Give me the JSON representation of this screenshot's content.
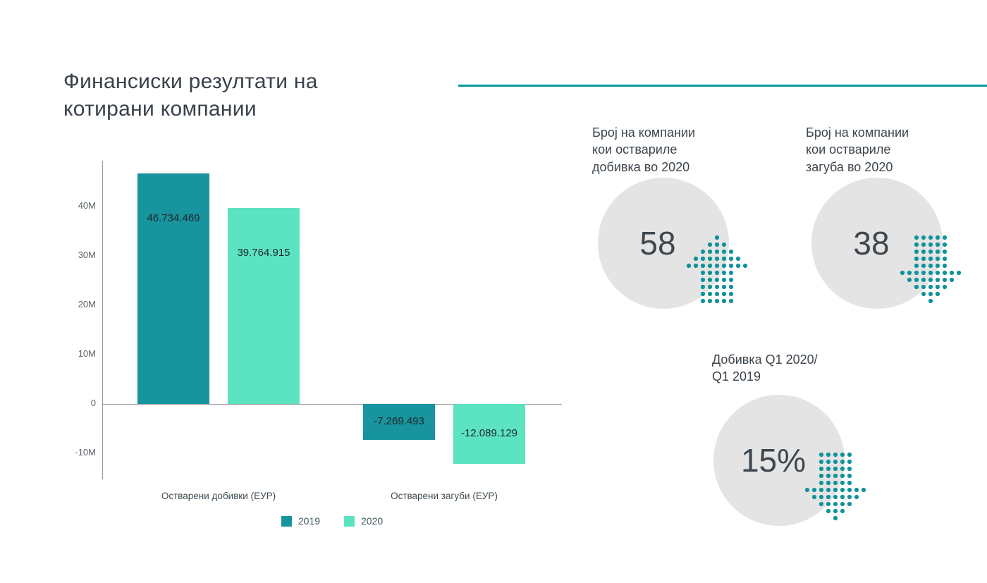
{
  "header": {
    "title": "Финансиски резултати на\nкотирани компании"
  },
  "chart_data": {
    "type": "bar",
    "title": "Финансиски резултати на котирани компании",
    "categories": [
      "Остварени добивки (ЕУР)",
      "Остварени загуби (ЕУР)"
    ],
    "series": [
      {
        "name": "2019",
        "color": "#17949E",
        "values": [
          46734469,
          -7269493
        ],
        "value_labels": [
          "46.734.469",
          "-7.269.493"
        ]
      },
      {
        "name": "2020",
        "color": "#5CE3C1",
        "values": [
          39764915,
          -12089129
        ],
        "value_labels": [
          "39.764.915",
          "-12.089.129"
        ]
      }
    ],
    "y_ticks": [
      {
        "label": "40M",
        "value": 40000000
      },
      {
        "label": "30M",
        "value": 30000000
      },
      {
        "label": "20M",
        "value": 20000000
      },
      {
        "label": "10M",
        "value": 10000000
      },
      {
        "label": "0",
        "value": 0
      },
      {
        "label": "-10M",
        "value": -10000000
      }
    ],
    "ylim": [
      -15000000,
      49000000
    ],
    "grid": "zero-baseline-only",
    "legend_position": "bottom"
  },
  "stats": [
    {
      "label": "Број на компании\nкои оствариле\nдобивка во 2020",
      "value": "58",
      "arrow": "up"
    },
    {
      "label": "Број на компании\nкои оствариле\nзагуба во 2020",
      "value": "38",
      "arrow": "down"
    },
    {
      "label": "Добивка Q1 2020/\nQ1 2019",
      "value": "15%",
      "arrow": "down"
    }
  ],
  "colors": {
    "accent_teal": "#0C97A5",
    "teal_2019": "#17949E",
    "mint_2020": "#5CE3C1",
    "dot_arrow_teal": "#10929C",
    "circle_gray": "#E4E4E4",
    "text_dark": "#39414A"
  }
}
